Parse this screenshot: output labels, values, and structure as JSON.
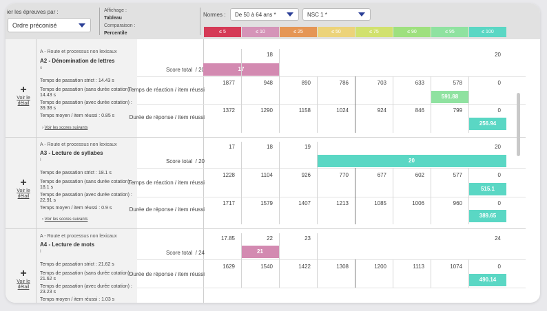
{
  "colors": {
    "le5": "#d53a56",
    "le10": "#d594b8",
    "le25": "#e59655",
    "le50": "#ecd37a",
    "le75": "#d1e16e",
    "le90": "#9ee07e",
    "le95": "#8fe2a0",
    "le100": "#5ad7c4",
    "bar_pink": "#d38ab1",
    "bar_teal": "#5ad7c4",
    "bar_green": "#8fe2a0"
  },
  "header": {
    "sort_label": "ier les épreuves par :",
    "sort_value": "Ordre préconisé",
    "affichage_label": "Affichage :",
    "affichage_value": "Tableau",
    "comparaison_label": "Comparaison :",
    "comparaison_value": "Percentile",
    "normes_label": "Normes :",
    "age_select": "De 50 à 64 ans *",
    "nsc_select": "NSC 1 *"
  },
  "percentile_bands": [
    "≤ 5",
    "≤ 10",
    "≤ 25",
    "≤ 50",
    "≤ 75",
    "≤ 90",
    "≤ 95",
    "≤ 100"
  ],
  "voir_le_detail": "Voir le détail",
  "voir_scores": "Voir les scores suivants",
  "blocks": [
    {
      "category": "A - Route et processus non lexicaux",
      "title": "A2 - Dénomination de lettres",
      "sub": "o",
      "criteria": [
        "Temps de passation strict : 14.43 s",
        "Temps de passation (sans durée cotation) : 14.43 s",
        "Temps de passation (avec durée cotation) : 39.38 s",
        "Temps moyen / item réussi : 0.85 s"
      ],
      "rows": [
        {
          "label": "Score total",
          "max": "/ 20",
          "ticks": [
            "18",
            "",
            "",
            "",
            "",
            "",
            "",
            "20"
          ],
          "bar": "17"
        },
        {
          "label": "Temps de réaction / item réussi",
          "ticks": [
            "1877",
            "948",
            "890",
            "786",
            "703",
            "633",
            "578",
            "0"
          ],
          "bar": "591.88"
        },
        {
          "label": "Durée de réponse / item réussi",
          "ticks": [
            "1372",
            "1290",
            "1158",
            "1024",
            "924",
            "846",
            "799",
            "0"
          ],
          "bar": "256.94"
        }
      ]
    },
    {
      "category": "A - Route et processus non lexicaux",
      "title": "A3 - Lecture de syllabes",
      "sub": "I",
      "criteria": [
        "Temps de passation strict : 18.1 s",
        "Temps de passation (sans durée cotation) : 18.1 s",
        "Temps de passation (avec durée cotation) : 22.91 s",
        "Temps moyen / item réussi : 0.9 s"
      ],
      "rows": [
        {
          "label": "Score total",
          "max": "/ 20",
          "ticks": [
            "17",
            "18",
            "19",
            "",
            "",
            "",
            "",
            "20"
          ],
          "bar": "20"
        },
        {
          "label": "Temps de réaction / item réussi",
          "ticks": [
            "1228",
            "1104",
            "926",
            "770",
            "677",
            "602",
            "577",
            "0"
          ],
          "bar": "515.1"
        },
        {
          "label": "Durée de réponse / item réussi",
          "ticks": [
            "1717",
            "1579",
            "1407",
            "1213",
            "1085",
            "1006",
            "960",
            "0"
          ],
          "bar": "389.65"
        }
      ]
    },
    {
      "category": "A - Route et processus non lexicaux",
      "title": "A4 - Lecture de mots",
      "sub": "I",
      "criteria": [
        "Temps de passation strict : 21.62 s",
        "Temps de passation (sans durée cotation) : 21.62 s",
        "Temps de passation (avec durée cotation) : 23.23 s",
        "Temps moyen / item réussi : 1.03 s"
      ],
      "rows": [
        {
          "label": "Score total",
          "max": "/ 24",
          "ticks": [
            "17.85",
            "22",
            "23",
            "",
            "",
            "",
            "",
            "24"
          ],
          "bar": "21"
        },
        {
          "label": "Durée de réponse / item réussi",
          "ticks": [
            "1629",
            "1540",
            "1422",
            "1308",
            "1200",
            "1113",
            "1074",
            "0"
          ],
          "bar": "490.14"
        }
      ]
    }
  ]
}
